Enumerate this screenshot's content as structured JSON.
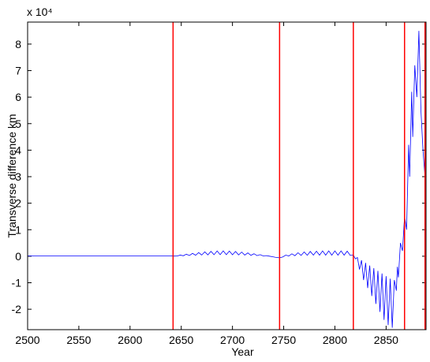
{
  "chart_data": {
    "type": "line",
    "xlabel": "Year",
    "ylabel": "Transverse difference km",
    "y_scale_label": "x 10⁴",
    "xlim": [
      2500,
      2889
    ],
    "ylim": [
      -27700,
      88300
    ],
    "xticks": [
      2500,
      2550,
      2600,
      2650,
      2700,
      2750,
      2800,
      2850
    ],
    "yticks": [
      {
        "value": -20000,
        "label": "-2"
      },
      {
        "value": -10000,
        "label": "-1"
      },
      0,
      {
        "value": 10000,
        "label": "1"
      },
      {
        "value": 20000,
        "label": "2"
      },
      {
        "value": 30000,
        "label": "3"
      },
      {
        "value": 40000,
        "label": "4"
      },
      {
        "value": 50000,
        "label": "5"
      },
      {
        "value": 60000,
        "label": "6"
      },
      {
        "value": 70000,
        "label": "7"
      },
      {
        "value": 80000,
        "label": "8"
      }
    ],
    "grid": false,
    "vlines": {
      "color": "#ff0000",
      "x": [
        2642,
        2746,
        2818,
        2868,
        2888
      ]
    },
    "series": [
      {
        "color": "#0000ff",
        "x": [
          2500,
          2520,
          2540,
          2560,
          2580,
          2600,
          2620,
          2640,
          2643,
          2646,
          2649,
          2652,
          2655,
          2658,
          2661,
          2664,
          2667,
          2670,
          2673,
          2676,
          2679,
          2682,
          2685,
          2688,
          2691,
          2694,
          2697,
          2700,
          2703,
          2706,
          2709,
          2712,
          2715,
          2718,
          2721,
          2724,
          2727,
          2730,
          2733,
          2736,
          2739,
          2742,
          2746,
          2749,
          2752,
          2755,
          2758,
          2761,
          2764,
          2767,
          2770,
          2773,
          2776,
          2779,
          2782,
          2785,
          2788,
          2791,
          2794,
          2797,
          2800,
          2803,
          2806,
          2809,
          2812,
          2815,
          2818,
          2820,
          2822,
          2824,
          2826,
          2828,
          2830,
          2832,
          2834,
          2836,
          2838,
          2840,
          2842,
          2844,
          2846,
          2848,
          2850,
          2852,
          2854,
          2856,
          2858,
          2860,
          2861,
          2862,
          2864,
          2866,
          2868,
          2870,
          2872,
          2873,
          2875,
          2876,
          2878,
          2880,
          2882,
          2884,
          2886,
          2888
        ],
        "values": [
          100,
          100,
          100,
          100,
          100,
          100,
          100,
          100,
          60,
          72,
          420,
          180,
          760,
          276,
          1080,
          366,
          1360,
          450,
          1640,
          522,
          1840,
          570,
          1960,
          600,
          2000,
          594,
          1940,
          564,
          1800,
          504,
          1560,
          426,
          1260,
          330,
          940,
          228,
          580,
          120,
          220,
          12,
          -200,
          -400,
          -600,
          -300,
          400,
          100,
          900,
          200,
          1300,
          300,
          1600,
          350,
          1800,
          400,
          1900,
          400,
          2000,
          400,
          2000,
          400,
          2000,
          400,
          2000,
          400,
          1900,
          300,
          500,
          -1000,
          -500,
          -5000,
          -1500,
          -9000,
          -2500,
          -12000,
          -3500,
          -15000,
          -4500,
          -18000,
          -5500,
          -21000,
          -6500,
          -24000,
          -7500,
          -26000,
          -8500,
          -27000,
          -9000,
          -13000,
          -4000,
          -8000,
          5000,
          2000,
          15000,
          10000,
          42000,
          30000,
          62000,
          45000,
          72000,
          60000,
          85000,
          55000,
          40000,
          30000
        ]
      }
    ]
  }
}
